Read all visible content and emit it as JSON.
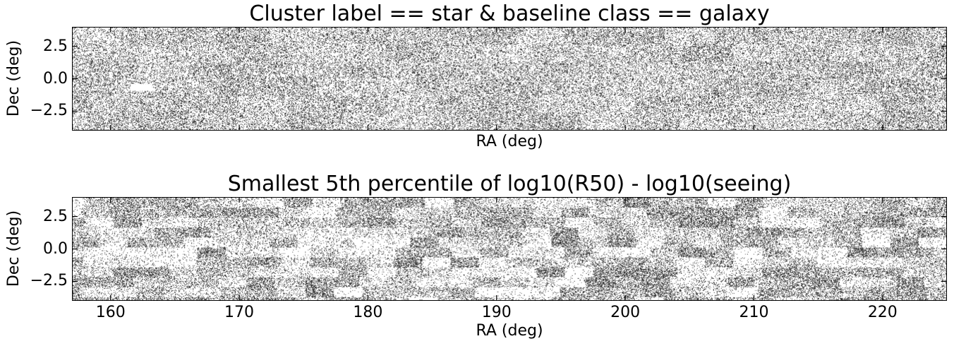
{
  "chart_data": [
    {
      "type": "heatmap",
      "title": "Cluster label == star & baseline class == galaxy",
      "xlabel": "RA (deg)",
      "ylabel": "Dec (deg)",
      "xlim": [
        157,
        225
      ],
      "ylim": [
        -4,
        4
      ],
      "xticks": [
        160,
        170,
        180,
        190,
        200,
        210,
        220
      ],
      "xtick_labels_shown": false,
      "yticks": [
        2.5,
        0.0,
        -2.5
      ],
      "ytick_labels": [
        "2.5",
        "0.0",
        "−2.5"
      ],
      "colormap": "Greys",
      "pattern": "dense speckle, mostly uniform light grey, faint rectangular field tiling; empty (white) gap near RA 161.5–163, Dec −0.9 to −0.4"
    },
    {
      "type": "heatmap",
      "title": "Smallest 5th percentile of log10(R50) - log10(seeing)",
      "xlabel": "RA (deg)",
      "ylabel": "Dec (deg)",
      "xlim": [
        157,
        225
      ],
      "ylim": [
        -4,
        4
      ],
      "xticks": [
        160,
        170,
        180,
        190,
        200,
        210,
        220
      ],
      "xtick_labels": [
        "160",
        "170",
        "180",
        "190",
        "200",
        "210",
        "220"
      ],
      "xtick_labels_shown": true,
      "yticks": [
        2.5,
        0.0,
        -2.5
      ],
      "ytick_labels": [
        "2.5",
        "0.0",
        "−2.5"
      ],
      "colormap": "Greys",
      "pattern": "strongly tiled rectangular survey fields with varying grey density"
    }
  ]
}
